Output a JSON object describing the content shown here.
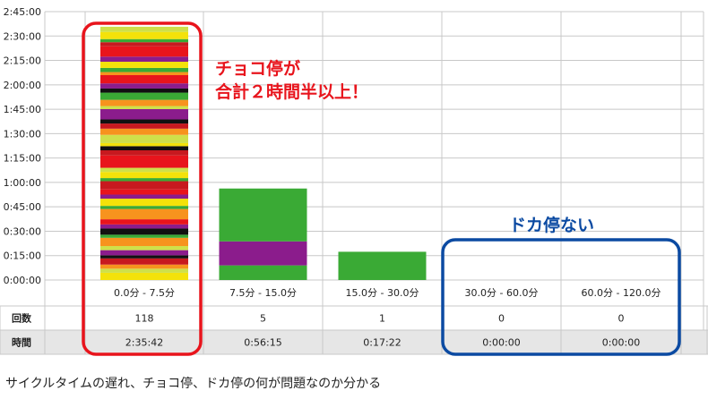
{
  "chart_data": {
    "type": "bar",
    "stacked": true,
    "categories": [
      "0.0分 - 7.5分",
      "7.5分 - 15.0分",
      "15.0分 - 30.0分",
      "30.0分 - 60.0分",
      "60.0分 - 120.0分"
    ],
    "y_ticks": [
      "0:00:00",
      "0:15:00",
      "0:30:00",
      "0:45:00",
      "1:00:00",
      "1:15:00",
      "1:30:00",
      "1:45:00",
      "2:00:00",
      "2:15:00",
      "2:30:00",
      "2:45:00"
    ],
    "ylim_seconds": [
      0,
      9900
    ],
    "bar_totals_seconds": [
      9342,
      3375,
      1042,
      0,
      0
    ],
    "bar_0_first_segment_seconds": [
      210,
      120,
      120,
      180,
      90,
      150,
      120,
      240,
      90,
      180,
      120,
      150,
      300,
      90,
      210,
      120,
      150,
      240,
      90,
      180,
      120,
      360,
      150,
      120,
      90,
      240,
      180,
      150,
      120,
      300,
      90,
      180,
      210,
      120,
      150,
      240,
      90,
      120,
      180,
      150,
      300,
      120,
      90,
      210,
      150
    ],
    "bar_0_palette": [
      "#f4e20a",
      "#e8141c",
      "#3aaa35",
      "#8b1c8c",
      "#f7931e",
      "#111111",
      "#cfe04a",
      "#c7191f"
    ],
    "bar_1_segments_seconds": [
      540,
      885,
      1950
    ],
    "bar_1_colors": [
      "#3aaa35",
      "#8b1c8c",
      "#3aaa35"
    ],
    "bar_2_segments_seconds": [
      1042
    ],
    "bar_2_colors": [
      "#3aaa35"
    ],
    "grid": true,
    "table": {
      "rows": [
        {
          "label": "回数",
          "values": [
            "118",
            "5",
            "1",
            "0",
            "0"
          ]
        },
        {
          "label": "時間",
          "values": [
            "2:35:42",
            "0:56:15",
            "0:17:22",
            "0:00:00",
            "0:00:00"
          ]
        }
      ]
    },
    "annotations": {
      "red_line1": "チョコ停が",
      "red_line2": "合計２時間半以上！",
      "blue": "ドカ停ない"
    },
    "colors": {
      "red_box": "#e8141c",
      "blue_box": "#0b4aa2",
      "grid": "#c8c8c8",
      "table_shade": "#e6e6e6"
    }
  },
  "caption": "サイクルタイムの遅れ、チョコ停、ドカ停の何が問題なのか分かる"
}
